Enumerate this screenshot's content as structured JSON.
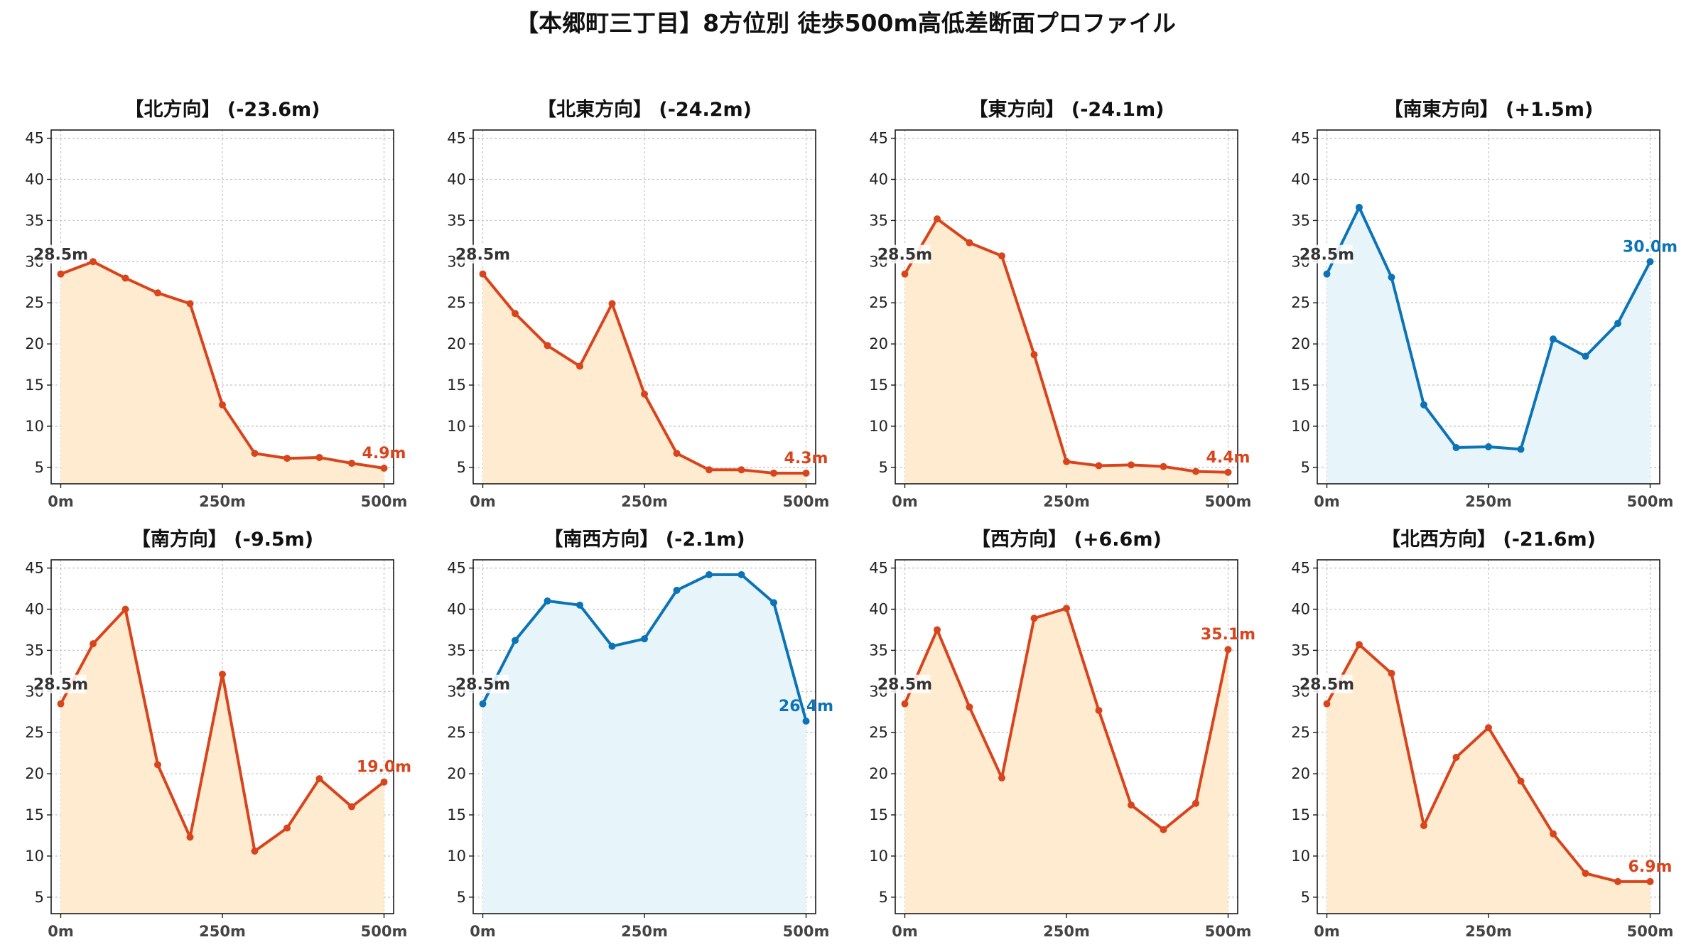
{
  "figure": {
    "title": "【本郷町三丁目】8方位別 徒歩500m高低差断面プロファイル"
  },
  "colors": {
    "down": "#d8441c",
    "down_fill": "#feebd0",
    "up": "#0c74b6",
    "up_fill": "#e7f5fb",
    "start_label": "#333333"
  },
  "chart_data": [
    {
      "type": "area",
      "title": "【北方向】 (-23.6m)",
      "trend": "down",
      "x": [
        0,
        50,
        100,
        150,
        200,
        250,
        300,
        350,
        400,
        450,
        500
      ],
      "values": [
        28.5,
        30.0,
        28.0,
        26.2,
        24.9,
        12.6,
        6.7,
        6.1,
        6.2,
        5.5,
        4.9
      ],
      "start_label": "28.5m",
      "end_label": "4.9m",
      "xticks": [
        "0m",
        "250m",
        "500m"
      ],
      "ylim": [
        3,
        46
      ],
      "yticks": [
        5,
        10,
        15,
        20,
        25,
        30,
        35,
        40,
        45
      ],
      "grid": true
    },
    {
      "type": "area",
      "title": "【北東方向】 (-24.2m)",
      "trend": "down",
      "x": [
        0,
        50,
        100,
        150,
        200,
        250,
        300,
        350,
        400,
        450,
        500
      ],
      "values": [
        28.5,
        23.7,
        19.8,
        17.3,
        24.9,
        13.9,
        6.7,
        4.7,
        4.7,
        4.3,
        4.3
      ],
      "start_label": "28.5m",
      "end_label": "4.3m",
      "xticks": [
        "0m",
        "250m",
        "500m"
      ],
      "ylim": [
        3,
        46
      ],
      "yticks": [
        5,
        10,
        15,
        20,
        25,
        30,
        35,
        40,
        45
      ],
      "grid": true
    },
    {
      "type": "area",
      "title": "【東方向】 (-24.1m)",
      "trend": "down",
      "x": [
        0,
        50,
        100,
        150,
        200,
        250,
        300,
        350,
        400,
        450,
        500
      ],
      "values": [
        28.5,
        35.2,
        32.3,
        30.7,
        18.7,
        5.7,
        5.2,
        5.3,
        5.1,
        4.5,
        4.4
      ],
      "start_label": "28.5m",
      "end_label": "4.4m",
      "xticks": [
        "0m",
        "250m",
        "500m"
      ],
      "ylim": [
        3,
        46
      ],
      "yticks": [
        5,
        10,
        15,
        20,
        25,
        30,
        35,
        40,
        45
      ],
      "grid": true
    },
    {
      "type": "area",
      "title": "【南東方向】 (+1.5m)",
      "trend": "up",
      "x": [
        0,
        50,
        100,
        150,
        200,
        250,
        300,
        350,
        400,
        450,
        500
      ],
      "values": [
        28.5,
        36.6,
        28.1,
        12.6,
        7.4,
        7.5,
        7.2,
        20.6,
        18.5,
        22.5,
        30.0
      ],
      "start_label": "28.5m",
      "end_label": "30.0m",
      "xticks": [
        "0m",
        "250m",
        "500m"
      ],
      "ylim": [
        3,
        46
      ],
      "yticks": [
        5,
        10,
        15,
        20,
        25,
        30,
        35,
        40,
        45
      ],
      "grid": true
    },
    {
      "type": "area",
      "title": "【南方向】 (-9.5m)",
      "trend": "down",
      "x": [
        0,
        50,
        100,
        150,
        200,
        250,
        300,
        350,
        400,
        450,
        500
      ],
      "values": [
        28.5,
        35.8,
        40.0,
        21.1,
        12.3,
        32.1,
        10.6,
        13.4,
        19.4,
        16.0,
        19.0
      ],
      "start_label": "28.5m",
      "end_label": "19.0m",
      "xticks": [
        "0m",
        "250m",
        "500m"
      ],
      "ylim": [
        3,
        46
      ],
      "yticks": [
        5,
        10,
        15,
        20,
        25,
        30,
        35,
        40,
        45
      ],
      "grid": true
    },
    {
      "type": "area",
      "title": "【南西方向】 (-2.1m)",
      "trend": "up",
      "x": [
        0,
        50,
        100,
        150,
        200,
        250,
        300,
        350,
        400,
        450,
        500
      ],
      "values": [
        28.5,
        36.2,
        41.0,
        40.5,
        35.5,
        36.4,
        42.3,
        44.2,
        44.2,
        40.8,
        26.4
      ],
      "start_label": "28.5m",
      "end_label": "26.4m",
      "xticks": [
        "0m",
        "250m",
        "500m"
      ],
      "ylim": [
        3,
        46
      ],
      "yticks": [
        5,
        10,
        15,
        20,
        25,
        30,
        35,
        40,
        45
      ],
      "grid": true
    },
    {
      "type": "area",
      "title": "【西方向】 (+6.6m)",
      "trend": "down",
      "x": [
        0,
        50,
        100,
        150,
        200,
        250,
        300,
        350,
        400,
        450,
        500
      ],
      "values": [
        28.5,
        37.5,
        28.1,
        19.5,
        38.9,
        40.1,
        27.7,
        16.2,
        13.2,
        16.4,
        35.1
      ],
      "start_label": "28.5m",
      "end_label": "35.1m",
      "xticks": [
        "0m",
        "250m",
        "500m"
      ],
      "ylim": [
        3,
        46
      ],
      "yticks": [
        5,
        10,
        15,
        20,
        25,
        30,
        35,
        40,
        45
      ],
      "grid": true
    },
    {
      "type": "area",
      "title": "【北西方向】 (-21.6m)",
      "trend": "down",
      "x": [
        0,
        50,
        100,
        150,
        200,
        250,
        300,
        350,
        400,
        450,
        500
      ],
      "values": [
        28.5,
        35.7,
        32.2,
        13.7,
        22.0,
        25.6,
        19.1,
        12.7,
        7.9,
        6.9,
        6.9
      ],
      "start_label": "28.5m",
      "end_label": "6.9m",
      "xticks": [
        "0m",
        "250m",
        "500m"
      ],
      "ylim": [
        3,
        46
      ],
      "yticks": [
        5,
        10,
        15,
        20,
        25,
        30,
        35,
        40,
        45
      ],
      "grid": true
    }
  ]
}
